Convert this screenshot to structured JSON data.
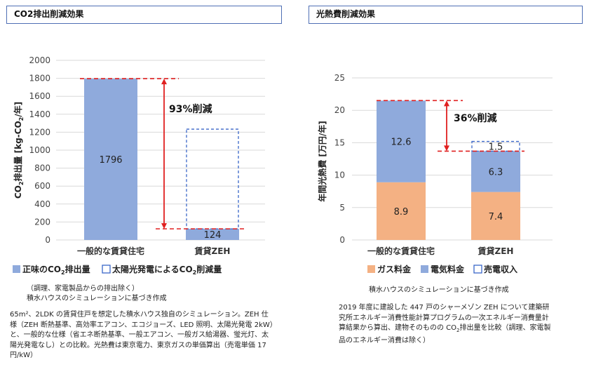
{
  "panels": {
    "left_title": "CO2排出削減効果",
    "right_title": "光熱費削減効果"
  },
  "colors": {
    "blue": "#8faadc",
    "orange": "#f4b183",
    "red": "#e02020",
    "dashed_blue": "#3a66c8"
  },
  "chart_data": [
    {
      "type": "bar",
      "title": "",
      "ylabel_parts": [
        "CO",
        "2",
        "排出量 [kg-CO",
        "2",
        "/年]"
      ],
      "ylim": [
        0,
        2000
      ],
      "yticks": [
        0,
        200,
        400,
        600,
        800,
        1000,
        1200,
        1400,
        1600,
        1800,
        2000
      ],
      "categories": [
        "一般的な賃貸住宅",
        "賃貸ZEH"
      ],
      "series": [
        {
          "name": "正味のCO2排出量",
          "values": [
            1796,
            124
          ],
          "value_labels": [
            "1796",
            "124"
          ]
        },
        {
          "name": "太陽光発電によるCO2削減量",
          "values": [
            0,
            1110
          ]
        }
      ],
      "annotation": "93%削減",
      "legend": {
        "position": "bottom",
        "items": [
          {
            "key": "net",
            "parts": [
              "正味のCO",
              "2",
              "排出量"
            ]
          },
          {
            "key": "solar",
            "parts": [
              "太陽光発電によるCO",
              "2",
              "削減量"
            ]
          }
        ]
      },
      "legend_note": "（調理、家電製品からの排出除く）",
      "source": "積水ハウスのシミュレーションに基づき作成"
    },
    {
      "type": "bar",
      "title": "",
      "ylabel": "年間光熱費 [万円/年]",
      "ylim": [
        0,
        25
      ],
      "yticks": [
        0,
        5,
        10,
        15,
        20,
        25
      ],
      "categories": [
        "一般的な賃貸住宅",
        "賃貸ZEH"
      ],
      "series": [
        {
          "name": "ガス料金",
          "values": [
            8.9,
            7.4
          ],
          "value_labels": [
            "8.9",
            "7.4"
          ]
        },
        {
          "name": "電気料金",
          "values": [
            12.6,
            6.3
          ],
          "value_labels": [
            "12.6",
            "6.3"
          ]
        },
        {
          "name": "売電収入",
          "values": [
            0,
            1.5
          ],
          "value_labels": [
            "",
            "1.5"
          ]
        }
      ],
      "annotation": "36%削減",
      "legend": {
        "position": "bottom",
        "items": [
          "ガス料金",
          "電気料金",
          "売電収入"
        ]
      },
      "source": "積水ハウスのシミュレーションに基づき作成"
    }
  ],
  "notes": {
    "left": "65m²、2LDK の賃貸住戸を想定した積水ハウス独自のシミュレーション。ZEH 仕様（ZEH 断熱基準、高効率エアコン、エコジョーズ、LED 照明、太陽光発電 2kW）と、一般的な仕様（省エネ断熱基準、一般エアコン、一般ガス給湯器、蛍光灯、太陽光発電なし）との比較。光熱費は東京電力、東京ガスの単価算出（売電単価 17円/kW）",
    "right_parts": [
      "2019 年度に建設した 447 戸のシャーメゾン ZEH について建築研究所エネルギー消費性能計算プログラムの一次エネルギー消費量計算結果から算出、建物そのものの CO",
      "2",
      "排出量を比較（調理、家電製品のエネルギー消費は除く）"
    ]
  }
}
